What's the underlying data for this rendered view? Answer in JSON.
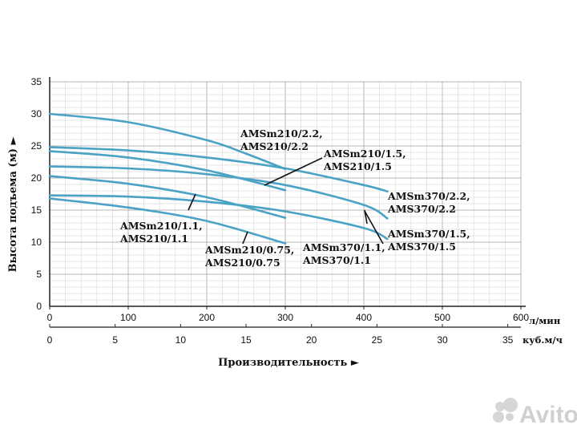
{
  "chart_data": {
    "type": "line",
    "ylabel": "Высота подъема (м) ►",
    "xlabel": "Производительность ►",
    "x_unit_primary": "л/мин",
    "x_unit_secondary": "куб.м/ч",
    "xlim": [
      0,
      600
    ],
    "ylim": [
      0,
      35
    ],
    "x_ticks": [
      "0",
      "100",
      "200",
      "300",
      "400",
      "500",
      "600"
    ],
    "x2_ticks": [
      "0",
      "5",
      "10",
      "15",
      "20",
      "25",
      "30",
      "35"
    ],
    "y_ticks": [
      "0",
      "5",
      "10",
      "15",
      "20",
      "25",
      "30",
      "35"
    ],
    "grid": true,
    "line_color": "#4aa3c4",
    "series": [
      {
        "name": "AMSm210/2.2, AMS210/2.2",
        "x": [
          0,
          100,
          200,
          250,
          300
        ],
        "y": [
          30,
          28.7,
          25.9,
          23.8,
          21.4
        ]
      },
      {
        "name": "AMSm210/1.5, AMS210/1.5",
        "x": [
          0,
          100,
          200,
          300
        ],
        "y": [
          24.2,
          23.2,
          21.2,
          18.1
        ]
      },
      {
        "name": "AMSm210/1.1, AMS210/1.1",
        "x": [
          0,
          100,
          200,
          300
        ],
        "y": [
          20.3,
          19.1,
          17,
          13.8
        ]
      },
      {
        "name": "AMSm210/0.75, AMS210/0.75",
        "x": [
          0,
          100,
          200,
          300
        ],
        "y": [
          16.8,
          15.4,
          13.3,
          9.8
        ]
      },
      {
        "name": "AMSm370/2.2, AMS370/2.2",
        "x": [
          0,
          100,
          200,
          300,
          400,
          430
        ],
        "y": [
          24.8,
          24.3,
          23.2,
          21.5,
          18.9,
          17.9
        ]
      },
      {
        "name": "AMSm370/1.5, AMS370/1.5",
        "x": [
          0,
          100,
          200,
          300,
          400,
          430
        ],
        "y": [
          21.8,
          21.5,
          20.6,
          18.9,
          15.8,
          13.7
        ]
      },
      {
        "name": "AMSm370/1.1, AMS370/1.1",
        "x": [
          0,
          100,
          200,
          300,
          400,
          430
        ],
        "y": [
          17.3,
          17.1,
          16.3,
          14.8,
          12.2,
          10.5
        ]
      }
    ],
    "annotations": [
      {
        "lines": [
          "AMSm210/2.2,",
          "AMS210/2.2"
        ]
      },
      {
        "lines": [
          "AMSm210/1.5,",
          "AMS210/1.5"
        ]
      },
      {
        "lines": [
          "AMSm370/2.2,",
          "AMS370/2.2"
        ]
      },
      {
        "lines": [
          "AMSm370/1.5,",
          "AMS370/1.5"
        ]
      },
      {
        "lines": [
          "AMSm210/1.1,",
          "AMS210/1.1"
        ]
      },
      {
        "lines": [
          "AMSm210/0.75,",
          "AMS210/0.75"
        ]
      },
      {
        "lines": [
          "AMSm370/1.1,",
          "AMS370/1.1"
        ]
      }
    ]
  },
  "watermark": {
    "text": "Avito"
  }
}
